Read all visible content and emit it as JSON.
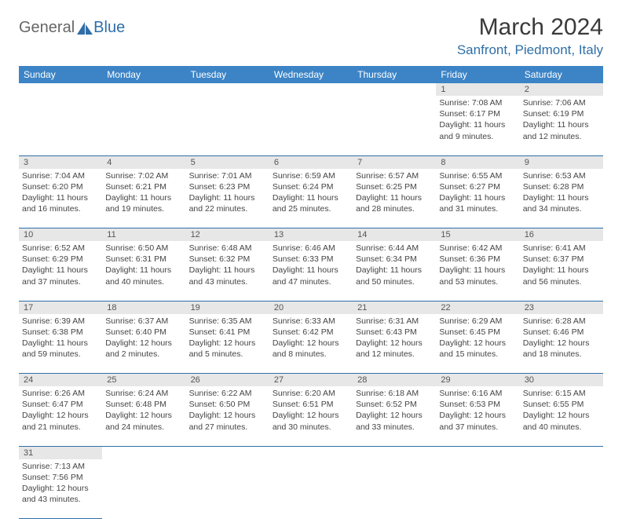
{
  "logo": {
    "general": "General",
    "blue": "Blue"
  },
  "title": "March 2024",
  "location": "Sanfront, Piedmont, Italy",
  "colors": {
    "header_bg": "#3c84c6",
    "header_text": "#ffffff",
    "daynum_bg": "#e7e7e7",
    "border": "#2f6fa8",
    "accent": "#2f6fa8"
  },
  "weekdays": [
    "Sunday",
    "Monday",
    "Tuesday",
    "Wednesday",
    "Thursday",
    "Friday",
    "Saturday"
  ],
  "weeks": [
    [
      null,
      null,
      null,
      null,
      null,
      {
        "n": "1",
        "sr": "Sunrise: 7:08 AM",
        "ss": "Sunset: 6:17 PM",
        "d1": "Daylight: 11 hours",
        "d2": "and 9 minutes."
      },
      {
        "n": "2",
        "sr": "Sunrise: 7:06 AM",
        "ss": "Sunset: 6:19 PM",
        "d1": "Daylight: 11 hours",
        "d2": "and 12 minutes."
      }
    ],
    [
      {
        "n": "3",
        "sr": "Sunrise: 7:04 AM",
        "ss": "Sunset: 6:20 PM",
        "d1": "Daylight: 11 hours",
        "d2": "and 16 minutes."
      },
      {
        "n": "4",
        "sr": "Sunrise: 7:02 AM",
        "ss": "Sunset: 6:21 PM",
        "d1": "Daylight: 11 hours",
        "d2": "and 19 minutes."
      },
      {
        "n": "5",
        "sr": "Sunrise: 7:01 AM",
        "ss": "Sunset: 6:23 PM",
        "d1": "Daylight: 11 hours",
        "d2": "and 22 minutes."
      },
      {
        "n": "6",
        "sr": "Sunrise: 6:59 AM",
        "ss": "Sunset: 6:24 PM",
        "d1": "Daylight: 11 hours",
        "d2": "and 25 minutes."
      },
      {
        "n": "7",
        "sr": "Sunrise: 6:57 AM",
        "ss": "Sunset: 6:25 PM",
        "d1": "Daylight: 11 hours",
        "d2": "and 28 minutes."
      },
      {
        "n": "8",
        "sr": "Sunrise: 6:55 AM",
        "ss": "Sunset: 6:27 PM",
        "d1": "Daylight: 11 hours",
        "d2": "and 31 minutes."
      },
      {
        "n": "9",
        "sr": "Sunrise: 6:53 AM",
        "ss": "Sunset: 6:28 PM",
        "d1": "Daylight: 11 hours",
        "d2": "and 34 minutes."
      }
    ],
    [
      {
        "n": "10",
        "sr": "Sunrise: 6:52 AM",
        "ss": "Sunset: 6:29 PM",
        "d1": "Daylight: 11 hours",
        "d2": "and 37 minutes."
      },
      {
        "n": "11",
        "sr": "Sunrise: 6:50 AM",
        "ss": "Sunset: 6:31 PM",
        "d1": "Daylight: 11 hours",
        "d2": "and 40 minutes."
      },
      {
        "n": "12",
        "sr": "Sunrise: 6:48 AM",
        "ss": "Sunset: 6:32 PM",
        "d1": "Daylight: 11 hours",
        "d2": "and 43 minutes."
      },
      {
        "n": "13",
        "sr": "Sunrise: 6:46 AM",
        "ss": "Sunset: 6:33 PM",
        "d1": "Daylight: 11 hours",
        "d2": "and 47 minutes."
      },
      {
        "n": "14",
        "sr": "Sunrise: 6:44 AM",
        "ss": "Sunset: 6:34 PM",
        "d1": "Daylight: 11 hours",
        "d2": "and 50 minutes."
      },
      {
        "n": "15",
        "sr": "Sunrise: 6:42 AM",
        "ss": "Sunset: 6:36 PM",
        "d1": "Daylight: 11 hours",
        "d2": "and 53 minutes."
      },
      {
        "n": "16",
        "sr": "Sunrise: 6:41 AM",
        "ss": "Sunset: 6:37 PM",
        "d1": "Daylight: 11 hours",
        "d2": "and 56 minutes."
      }
    ],
    [
      {
        "n": "17",
        "sr": "Sunrise: 6:39 AM",
        "ss": "Sunset: 6:38 PM",
        "d1": "Daylight: 11 hours",
        "d2": "and 59 minutes."
      },
      {
        "n": "18",
        "sr": "Sunrise: 6:37 AM",
        "ss": "Sunset: 6:40 PM",
        "d1": "Daylight: 12 hours",
        "d2": "and 2 minutes."
      },
      {
        "n": "19",
        "sr": "Sunrise: 6:35 AM",
        "ss": "Sunset: 6:41 PM",
        "d1": "Daylight: 12 hours",
        "d2": "and 5 minutes."
      },
      {
        "n": "20",
        "sr": "Sunrise: 6:33 AM",
        "ss": "Sunset: 6:42 PM",
        "d1": "Daylight: 12 hours",
        "d2": "and 8 minutes."
      },
      {
        "n": "21",
        "sr": "Sunrise: 6:31 AM",
        "ss": "Sunset: 6:43 PM",
        "d1": "Daylight: 12 hours",
        "d2": "and 12 minutes."
      },
      {
        "n": "22",
        "sr": "Sunrise: 6:29 AM",
        "ss": "Sunset: 6:45 PM",
        "d1": "Daylight: 12 hours",
        "d2": "and 15 minutes."
      },
      {
        "n": "23",
        "sr": "Sunrise: 6:28 AM",
        "ss": "Sunset: 6:46 PM",
        "d1": "Daylight: 12 hours",
        "d2": "and 18 minutes."
      }
    ],
    [
      {
        "n": "24",
        "sr": "Sunrise: 6:26 AM",
        "ss": "Sunset: 6:47 PM",
        "d1": "Daylight: 12 hours",
        "d2": "and 21 minutes."
      },
      {
        "n": "25",
        "sr": "Sunrise: 6:24 AM",
        "ss": "Sunset: 6:48 PM",
        "d1": "Daylight: 12 hours",
        "d2": "and 24 minutes."
      },
      {
        "n": "26",
        "sr": "Sunrise: 6:22 AM",
        "ss": "Sunset: 6:50 PM",
        "d1": "Daylight: 12 hours",
        "d2": "and 27 minutes."
      },
      {
        "n": "27",
        "sr": "Sunrise: 6:20 AM",
        "ss": "Sunset: 6:51 PM",
        "d1": "Daylight: 12 hours",
        "d2": "and 30 minutes."
      },
      {
        "n": "28",
        "sr": "Sunrise: 6:18 AM",
        "ss": "Sunset: 6:52 PM",
        "d1": "Daylight: 12 hours",
        "d2": "and 33 minutes."
      },
      {
        "n": "29",
        "sr": "Sunrise: 6:16 AM",
        "ss": "Sunset: 6:53 PM",
        "d1": "Daylight: 12 hours",
        "d2": "and 37 minutes."
      },
      {
        "n": "30",
        "sr": "Sunrise: 6:15 AM",
        "ss": "Sunset: 6:55 PM",
        "d1": "Daylight: 12 hours",
        "d2": "and 40 minutes."
      }
    ],
    [
      {
        "n": "31",
        "sr": "Sunrise: 7:13 AM",
        "ss": "Sunset: 7:56 PM",
        "d1": "Daylight: 12 hours",
        "d2": "and 43 minutes."
      },
      null,
      null,
      null,
      null,
      null,
      null
    ]
  ]
}
